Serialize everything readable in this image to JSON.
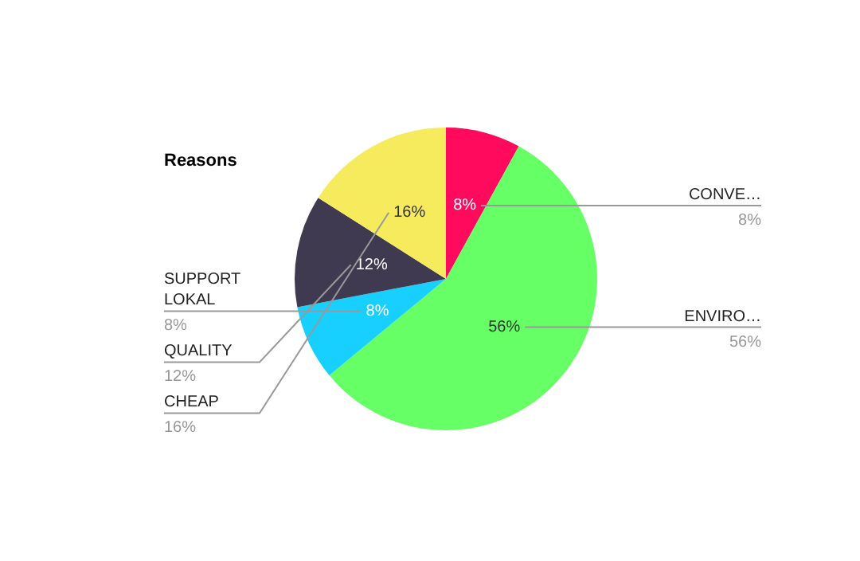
{
  "chart_data": {
    "type": "pie",
    "title": "Reasons",
    "categories": [
      "CONVE…",
      "ENVIRO…",
      "SUPPORT LOKAL",
      "QUALITY",
      "CHEAP"
    ],
    "values": [
      8,
      56,
      8,
      12,
      16
    ],
    "colors": [
      "#ff0a5c",
      "#66ff66",
      "#18d0ff",
      "#3f3a50",
      "#f6eb5c"
    ],
    "value_labels": [
      "8%",
      "56%",
      "8%",
      "12%",
      "16%"
    ],
    "legend": false
  }
}
